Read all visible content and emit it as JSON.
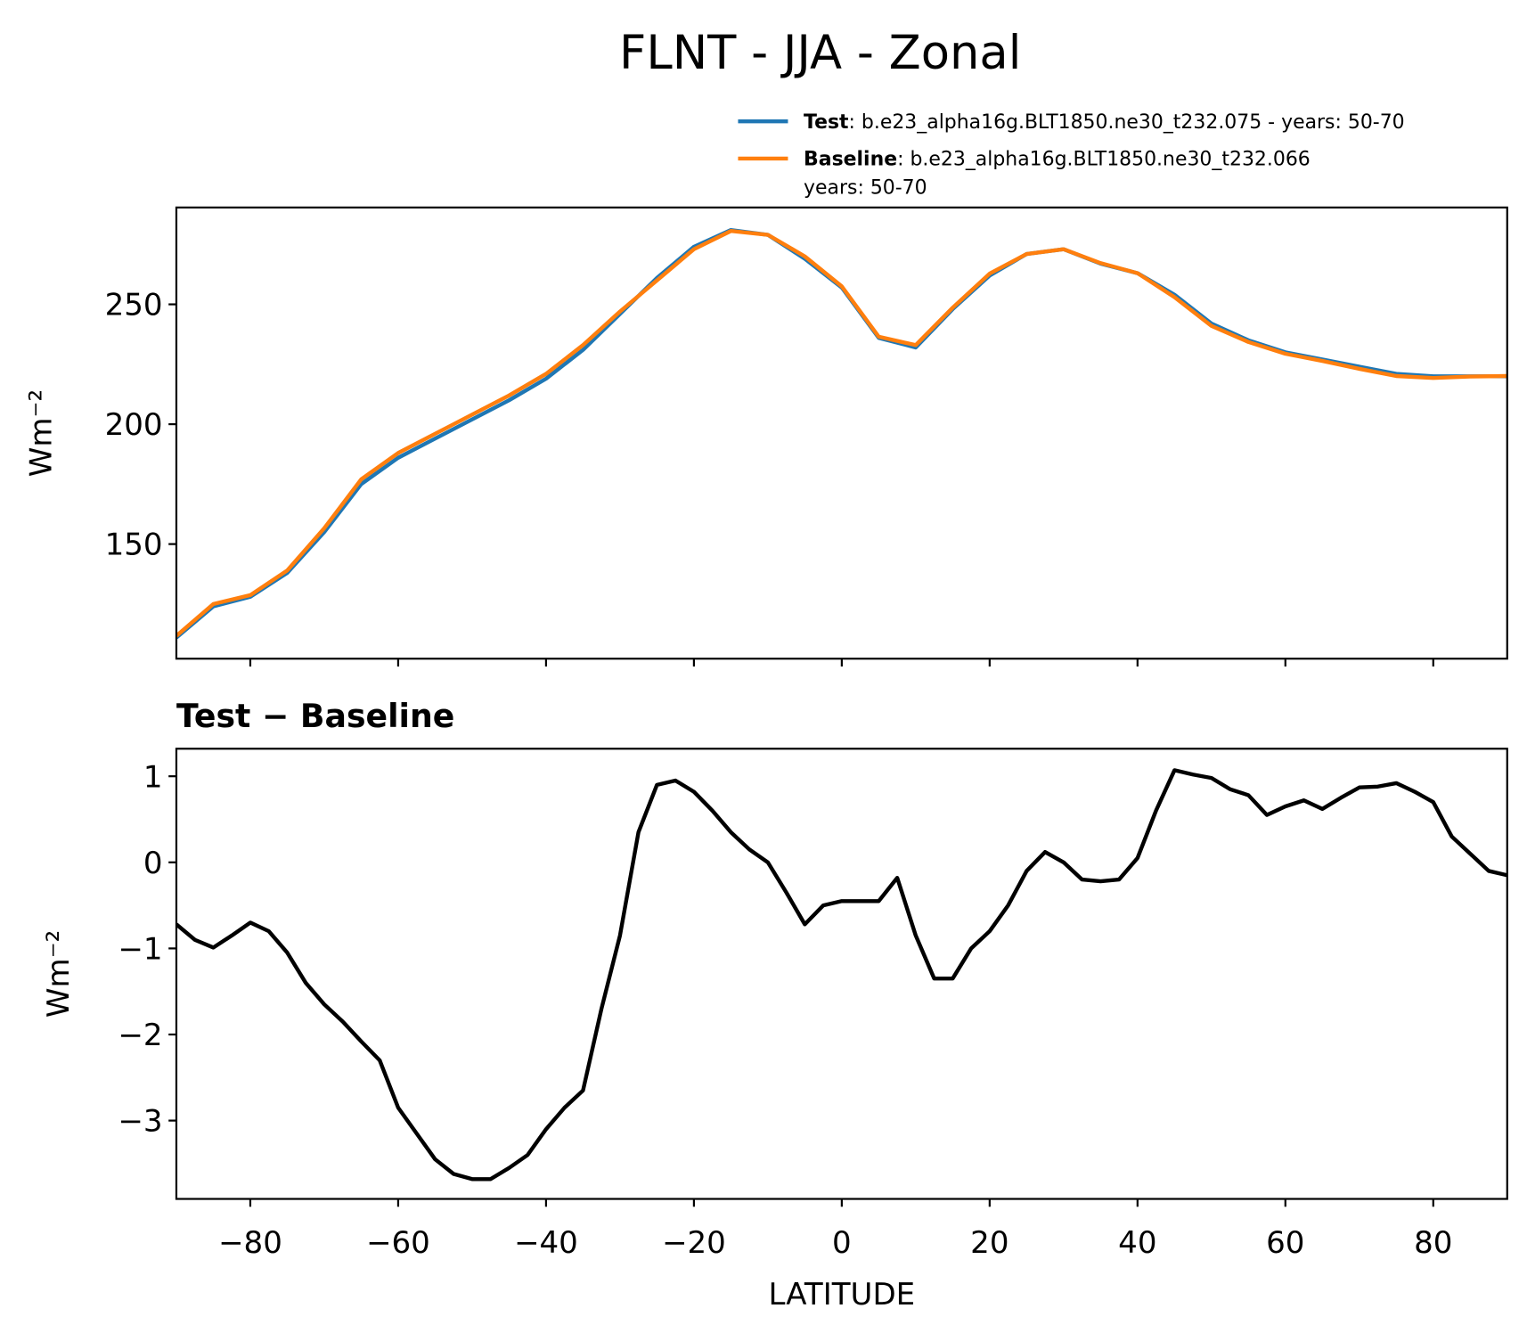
{
  "chart_data": [
    {
      "type": "line",
      "title": "FLNT - JJA - Zonal",
      "ylabel": "Wm⁻²",
      "x": [
        -90,
        -85,
        -80,
        -75,
        -70,
        -65,
        -60,
        -55,
        -50,
        -45,
        -40,
        -35,
        -30,
        -25,
        -20,
        -15,
        -10,
        -5,
        0,
        5,
        10,
        15,
        20,
        25,
        30,
        35,
        40,
        45,
        50,
        55,
        60,
        65,
        70,
        75,
        80,
        85,
        90
      ],
      "series": [
        {
          "name": "Test",
          "legend_text": [
            ": b.e23_alpha16g.BLT1850.ne30_t232.075 - years: 50-70"
          ],
          "color": "#1f77b4",
          "values": [
            111,
            124,
            128,
            138,
            155,
            175,
            186,
            194,
            202,
            210,
            219,
            231,
            246,
            261,
            274,
            281,
            279,
            269,
            257,
            236,
            232,
            248,
            262,
            271,
            273,
            267,
            263,
            254,
            242,
            235,
            230,
            227,
            224,
            221,
            220,
            220,
            220
          ]
        },
        {
          "name": "Baseline",
          "legend_text": [
            ": b.e23_alpha16g.BLT1850.ne30_t232.066",
            "years: 50-70"
          ],
          "color": "#ff7f0e",
          "values": [
            111.7,
            125,
            128.7,
            139,
            156.6,
            177,
            188,
            196,
            204,
            212,
            221,
            233,
            247,
            260,
            273,
            280.6,
            279,
            270,
            257.5,
            236.5,
            233,
            248.6,
            262.8,
            271,
            273,
            267.2,
            263,
            253,
            241,
            234.3,
            229.4,
            226.4,
            223.1,
            220.1,
            219.3,
            219.9,
            220.1
          ]
        }
      ],
      "xlim": [
        -90,
        90
      ],
      "ylim": [
        102.2,
        290.4
      ],
      "xticks": [
        -80,
        -60,
        -40,
        -20,
        0,
        20,
        40,
        60,
        80
      ],
      "show_xtick_labels": false,
      "yticks": [
        150,
        200,
        250
      ],
      "legend": "above-right"
    },
    {
      "type": "line",
      "title": "Test − Baseline",
      "xlabel": "LATITUDE",
      "ylabel": "Wm⁻²",
      "x": [
        -90,
        -87.5,
        -85,
        -82.5,
        -80,
        -77.5,
        -75,
        -72.5,
        -70,
        -67.5,
        -65,
        -62.5,
        -60,
        -57.5,
        -55,
        -52.5,
        -50,
        -47.5,
        -45,
        -42.5,
        -40,
        -37.5,
        -35,
        -32.5,
        -30,
        -27.5,
        -25,
        -22.5,
        -20,
        -17.5,
        -15,
        -12.5,
        -10,
        -7.5,
        -5,
        -2.5,
        0,
        2.5,
        5,
        7.5,
        10,
        12.5,
        15,
        17.5,
        20,
        22.5,
        25,
        27.5,
        30,
        32.5,
        35,
        37.5,
        40,
        42.5,
        45,
        47.5,
        50,
        52.5,
        55,
        57.5,
        60,
        62.5,
        65,
        67.5,
        70,
        72.5,
        75,
        77.5,
        80,
        82.5,
        85,
        87.5,
        90
      ],
      "series": [
        {
          "color": "#000000",
          "values": [
            -0.72,
            -0.9,
            -0.99,
            -0.85,
            -0.7,
            -0.8,
            -1.05,
            -1.4,
            -1.65,
            -1.85,
            -2.08,
            -2.3,
            -2.85,
            -3.15,
            -3.45,
            -3.62,
            -3.68,
            -3.68,
            -3.55,
            -3.4,
            -3.1,
            -2.85,
            -2.65,
            -1.7,
            -0.85,
            0.35,
            0.9,
            0.95,
            0.82,
            0.6,
            0.35,
            0.15,
            0.0,
            -0.35,
            -0.72,
            -0.5,
            -0.45,
            -0.45,
            -0.45,
            -0.18,
            -0.85,
            -1.35,
            -1.35,
            -1.0,
            -0.8,
            -0.5,
            -0.1,
            0.12,
            0.0,
            -0.2,
            -0.22,
            -0.2,
            0.05,
            0.6,
            1.07,
            1.02,
            0.98,
            0.85,
            0.78,
            0.55,
            0.65,
            0.72,
            0.62,
            0.75,
            0.87,
            0.88,
            0.92,
            0.82,
            0.7,
            0.3,
            0.1,
            -0.1,
            -0.15
          ]
        }
      ],
      "xlim": [
        -90,
        90
      ],
      "ylim": [
        -3.91,
        1.32
      ],
      "xticks": [
        {
          "value": -80,
          "label": "−80"
        },
        {
          "value": -60,
          "label": "−60"
        },
        {
          "value": -40,
          "label": "−40"
        },
        {
          "value": -20,
          "label": "−20"
        },
        0,
        20,
        40,
        60,
        80
      ],
      "show_xtick_labels": true,
      "yticks": [
        {
          "value": -3,
          "label": "−3"
        },
        {
          "value": -2,
          "label": "−2"
        },
        {
          "value": -1,
          "label": "−1"
        },
        0,
        1
      ]
    }
  ]
}
